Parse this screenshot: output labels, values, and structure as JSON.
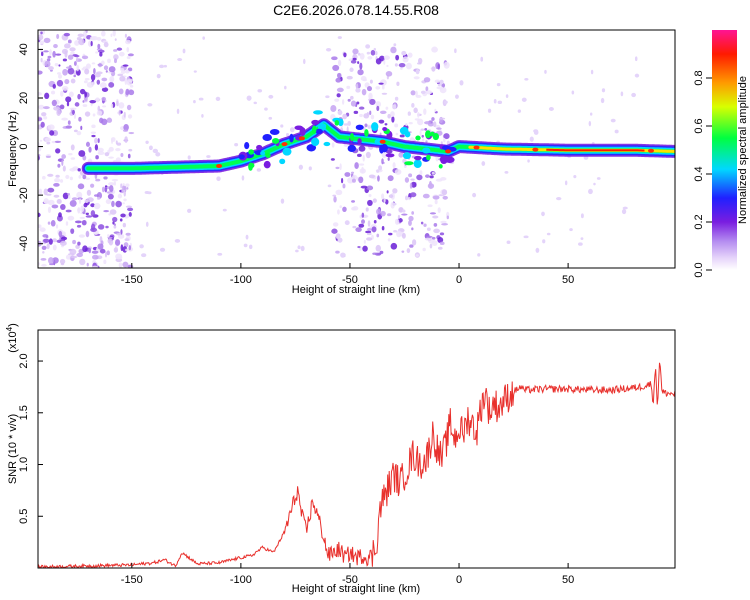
{
  "chart_data": [
    {
      "type": "heatmap",
      "title": "C2E6.2026.078.14.55.R08",
      "xlabel": "Height of straight line (km)",
      "ylabel": "Frequency (Hz)",
      "xlim": [
        -193,
        99
      ],
      "ylim": [
        -50,
        48
      ],
      "xticks": [
        -150,
        -100,
        -50,
        0,
        50
      ],
      "yticks": [
        -40,
        -20,
        0,
        20,
        40
      ],
      "colorbar": {
        "label": "Normalized spectral amplitude",
        "range": [
          0,
          1
        ],
        "ticks": [
          "0.0",
          "0.2",
          "0.4",
          "0.6",
          "0.8"
        ],
        "colors": [
          "#ffffff",
          "#d9c2f5",
          "#8a2be2",
          "#1a1aff",
          "#00e5ff",
          "#00ff40",
          "#ffff00",
          "#ff8000",
          "#ff0000",
          "#ff1493"
        ]
      },
      "ridge": {
        "name": "dominant frequency track",
        "x": [
          -170,
          -150,
          -130,
          -110,
          -100,
          -90,
          -80,
          -70,
          -62,
          -55,
          -45,
          -35,
          -25,
          -15,
          -5,
          0,
          20,
          50,
          80,
          99
        ],
        "y": [
          -9,
          -9,
          -8.5,
          -8,
          -6,
          -3,
          1,
          4,
          9,
          4,
          3,
          2,
          0,
          -1,
          -2,
          0,
          -1,
          -1.5,
          -1.5,
          -2
        ]
      },
      "noise_regions": [
        {
          "x_range": [
            -193,
            -150
          ],
          "y_range": [
            -50,
            48
          ]
        },
        {
          "x_range": [
            -58,
            -5
          ],
          "y_range": [
            -45,
            40
          ]
        }
      ]
    },
    {
      "type": "line",
      "title": "",
      "xlabel": "Height of straight line (km)",
      "ylabel": "SNR (10 * v/v)",
      "y_multiplier": "(x10^4)",
      "y_multiplier_base": "(x10",
      "y_multiplier_exp": "4",
      "y_multiplier_tail": ")",
      "xlim": [
        -193,
        99
      ],
      "ylim": [
        0,
        2.3
      ],
      "xticks": [
        -150,
        -100,
        -50,
        0,
        50
      ],
      "yticks": [
        "0.5",
        "1.0",
        "1.5",
        "2.0"
      ],
      "color": "#e8302c",
      "series": [
        {
          "name": "SNR",
          "x": [
            -193,
            -170,
            -150,
            -140,
            -135,
            -130,
            -127,
            -120,
            -110,
            -100,
            -95,
            -90,
            -85,
            -80,
            -77,
            -74,
            -72,
            -70,
            -67,
            -64,
            -62,
            -60,
            -55,
            -52,
            -50,
            -47,
            -44,
            -42,
            -40,
            -38,
            -36,
            -33,
            -30,
            -27,
            -24,
            -21,
            -18,
            -15,
            -12,
            -10,
            -8,
            -6,
            -4,
            -2,
            0,
            2,
            4,
            6,
            8,
            10,
            12,
            14,
            16,
            18,
            20,
            22,
            25,
            28,
            30,
            40,
            50,
            60,
            70,
            80,
            85,
            88,
            89,
            90,
            91,
            92,
            93,
            95,
            99
          ],
          "y": [
            0.01,
            0.02,
            0.03,
            0.05,
            0.08,
            0.02,
            0.15,
            0.04,
            0.05,
            0.1,
            0.12,
            0.2,
            0.15,
            0.35,
            0.55,
            0.75,
            0.5,
            0.35,
            0.65,
            0.45,
            0.3,
            0.12,
            0.18,
            0.1,
            0.15,
            0.1,
            0.12,
            0.1,
            0.12,
            0.22,
            0.6,
            0.75,
            0.9,
            0.82,
            0.95,
            1.1,
            1.0,
            1.05,
            1.3,
            1.15,
            1.05,
            1.2,
            1.4,
            1.25,
            1.35,
            1.3,
            1.45,
            1.4,
            1.3,
            1.55,
            1.7,
            1.5,
            1.6,
            1.55,
            1.6,
            1.65,
            1.7,
            1.75,
            1.72,
            1.73,
            1.73,
            1.72,
            1.72,
            1.74,
            1.76,
            1.78,
            1.6,
            1.95,
            1.55,
            2.05,
            1.7,
            1.69,
            1.68
          ]
        }
      ]
    }
  ]
}
